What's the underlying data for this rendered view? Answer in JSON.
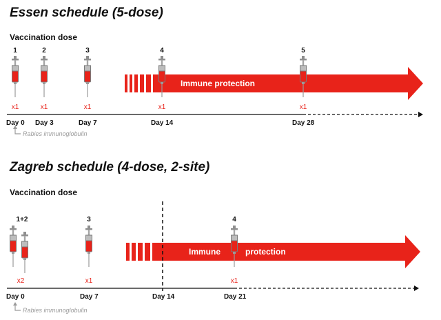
{
  "essen": {
    "title": "Essen schedule (5-dose)",
    "subtitle": "Vaccination dose",
    "doses": [
      {
        "number": "1",
        "multiplier": "x1",
        "day": "Day 0"
      },
      {
        "number": "2",
        "multiplier": "x1",
        "day": "Day 3"
      },
      {
        "number": "3",
        "multiplier": "x1",
        "day": "Day 7"
      },
      {
        "number": "4",
        "multiplier": "x1",
        "day": "Day 14"
      },
      {
        "number": "5",
        "multiplier": "x1",
        "day": "Day 28"
      }
    ],
    "arrow_label": "Immune protection",
    "immunoglobulin_note": "Rabies immunoglobulin"
  },
  "zagreb": {
    "title": "Zagreb schedule (4-dose, 2-site)",
    "subtitle": "Vaccination dose",
    "doses": [
      {
        "number": "1+2",
        "multiplier": "x2",
        "day": "Day 0"
      },
      {
        "number": "3",
        "multiplier": "x1",
        "day": "Day 7"
      },
      {
        "number": "4",
        "multiplier": "x1",
        "day": "Day 21"
      }
    ],
    "extra_day": "Day 14",
    "arrow_label_left": "Immune",
    "arrow_label_right": "protection",
    "immunoglobulin_note": "Rabies immunoglobulin"
  },
  "colors": {
    "accent": "#e8231a",
    "syringe_gray": "#9a9a9a",
    "text": "#111111"
  }
}
